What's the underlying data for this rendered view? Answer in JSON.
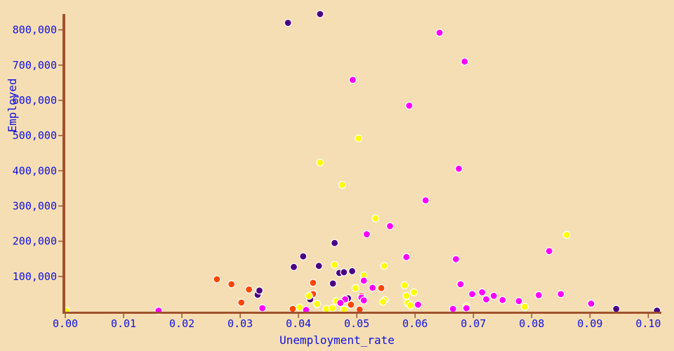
{
  "chart_data": {
    "type": "scatter",
    "xlabel": "Unemployment_rate",
    "ylabel": "Employed",
    "xlim": [
      0,
      0.102
    ],
    "ylim": [
      0,
      845000
    ],
    "grid": false,
    "legend": "none",
    "x_ticks": [
      "0.00",
      "0.01",
      "0.02",
      "0.03",
      "0.04",
      "0.05",
      "0.06",
      "0.07",
      "0.08",
      "0.09",
      "0.10"
    ],
    "x_tick_values": [
      0,
      0.01,
      0.02,
      0.03,
      0.04,
      0.05,
      0.06,
      0.07,
      0.08,
      0.09,
      0.1
    ],
    "y_ticks": [
      "100,000",
      "200,000",
      "300,000",
      "400,000",
      "500,000",
      "600,000",
      "700,000",
      "800,000"
    ],
    "y_tick_values": [
      100000,
      200000,
      300000,
      400000,
      500000,
      600000,
      700000,
      800000
    ],
    "colors": {
      "background": "#f5deb3",
      "axis": "#a0522d",
      "text": "#1010e0",
      "orange_red": "#ff4500",
      "indigo": "#4b0082",
      "yellow": "#ffff00",
      "magenta": "#ff00ff"
    },
    "series": [
      {
        "color": "#ff4500",
        "points": [
          [
            0.026,
            92000
          ],
          [
            0.0285,
            78000
          ],
          [
            0.0302,
            26000
          ],
          [
            0.0315,
            63000
          ],
          [
            0.039,
            8000
          ],
          [
            0.0425,
            82000
          ],
          [
            0.0425,
            50000
          ],
          [
            0.049,
            20000
          ],
          [
            0.0505,
            6000
          ],
          [
            0.0508,
            45000
          ],
          [
            0.0542,
            67000
          ]
        ]
      },
      {
        "color": "#4b0082",
        "points": [
          [
            0.0382,
            820000
          ],
          [
            0.0437,
            845000
          ],
          [
            0.0462,
            195000
          ],
          [
            0.0408,
            157000
          ],
          [
            0.0435,
            130000
          ],
          [
            0.0392,
            127000
          ],
          [
            0.047,
            110000
          ],
          [
            0.0478,
            112000
          ],
          [
            0.0492,
            115000
          ],
          [
            0.0459,
            80000
          ],
          [
            0.033,
            48000
          ],
          [
            0.0333,
            60000
          ],
          [
            0.042,
            35000
          ],
          [
            0.0485,
            38000
          ],
          [
            0.0945,
            8000
          ],
          [
            0.1015,
            3000
          ]
        ]
      },
      {
        "color": "#ffff00",
        "points": [
          [
            0.0002,
            2000
          ],
          [
            0.0437,
            423000
          ],
          [
            0.0475,
            360000
          ],
          [
            0.0503,
            492000
          ],
          [
            0.0532,
            265000
          ],
          [
            0.0547,
            130000
          ],
          [
            0.0462,
            133000
          ],
          [
            0.0512,
            103000
          ],
          [
            0.0582,
            75000
          ],
          [
            0.0498,
            67000
          ],
          [
            0.0598,
            55000
          ],
          [
            0.0585,
            45000
          ],
          [
            0.0418,
            45000
          ],
          [
            0.0465,
            30000
          ],
          [
            0.0548,
            33000
          ],
          [
            0.0545,
            28000
          ],
          [
            0.0587,
            25000
          ],
          [
            0.0432,
            22000
          ],
          [
            0.0402,
            12000
          ],
          [
            0.0448,
            8000
          ],
          [
            0.0458,
            10000
          ],
          [
            0.0478,
            6000
          ],
          [
            0.086,
            218000
          ],
          [
            0.0688,
            15000
          ],
          [
            0.0788,
            14000
          ],
          [
            0.0592,
            18000
          ]
        ]
      },
      {
        "color": "#ff00ff",
        "points": [
          [
            0.016,
            3000
          ],
          [
            0.0338,
            10000
          ],
          [
            0.0413,
            5000
          ],
          [
            0.0493,
            658000
          ],
          [
            0.059,
            585000
          ],
          [
            0.0642,
            792000
          ],
          [
            0.0685,
            710000
          ],
          [
            0.0675,
            406000
          ],
          [
            0.0618,
            316000
          ],
          [
            0.0517,
            220000
          ],
          [
            0.0557,
            243000
          ],
          [
            0.0585,
            155000
          ],
          [
            0.067,
            149000
          ],
          [
            0.083,
            172000
          ],
          [
            0.0678,
            78000
          ],
          [
            0.0512,
            88000
          ],
          [
            0.0527,
            68000
          ],
          [
            0.0698,
            50000
          ],
          [
            0.0715,
            55000
          ],
          [
            0.0735,
            45000
          ],
          [
            0.075,
            33000
          ],
          [
            0.0722,
            35000
          ],
          [
            0.0778,
            30000
          ],
          [
            0.0812,
            47000
          ],
          [
            0.085,
            50000
          ],
          [
            0.0902,
            23000
          ],
          [
            0.0508,
            40000
          ],
          [
            0.0512,
            32000
          ],
          [
            0.0605,
            20000
          ],
          [
            0.048,
            35000
          ],
          [
            0.0665,
            8000
          ],
          [
            0.0688,
            10000
          ],
          [
            0.0472,
            25000
          ]
        ]
      }
    ]
  }
}
